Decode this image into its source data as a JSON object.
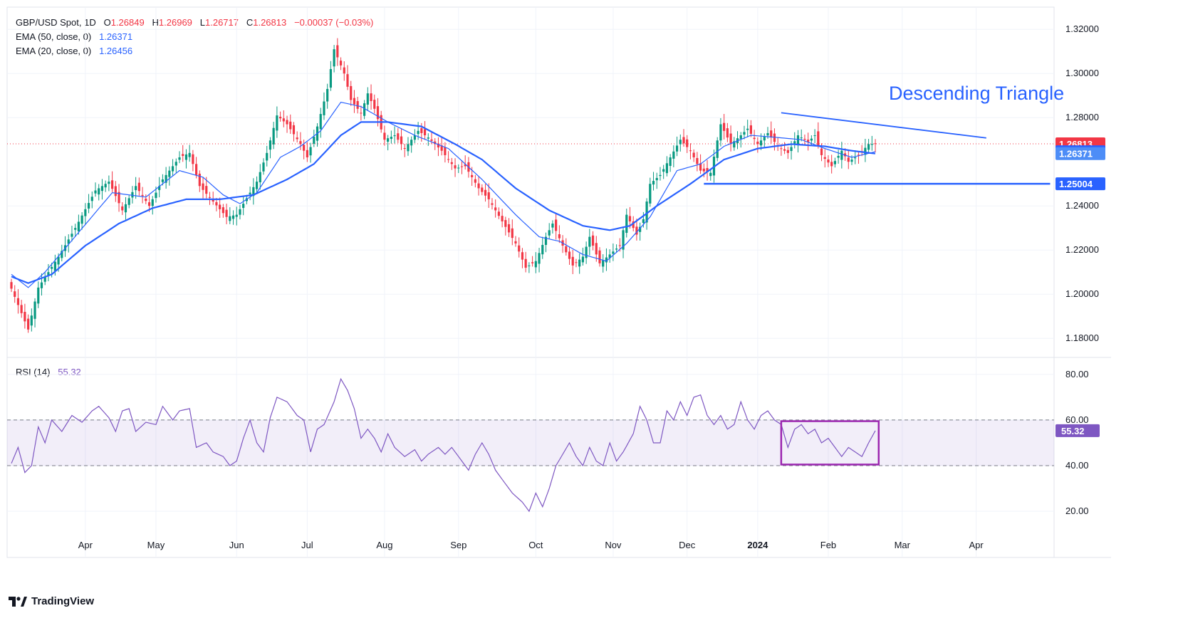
{
  "header": {
    "symbol": "GBP/USD Spot, 1D",
    "o_label": "O",
    "o_value": "1.26849",
    "h_label": "H",
    "h_value": "1.26969",
    "l_label": "L",
    "l_value": "1.26717",
    "c_label": "C",
    "c_value": "1.26813",
    "change": "−0.00037 (−0.03%)"
  },
  "ema50": {
    "label": "EMA (50, close, 0)",
    "value": "1.26371",
    "color": "#2962ff"
  },
  "ema20": {
    "label": "EMA (20, close, 0)",
    "value": "1.26456",
    "color": "#2962ff"
  },
  "rsi": {
    "label": "RSI (14)",
    "value": "55.32",
    "color": "#7e57c2"
  },
  "annotation": {
    "text": "Descending Triangle"
  },
  "brand": "TradingView",
  "colors": {
    "up": "#089981",
    "down": "#f23645",
    "ema": "#2962ff",
    "rsi": "#7e57c2",
    "box": "#9c27b0"
  },
  "chart_data": [
    {
      "type": "candlestick",
      "title": "GBP/USD Spot, 1D",
      "x_ticks": [
        "Apr",
        "May",
        "Jun",
        "Jul",
        "Aug",
        "Sep",
        "Oct",
        "Nov",
        "Dec",
        "2024",
        "Feb",
        "Mar",
        "Apr"
      ],
      "y_ticks": [
        "1.32000",
        "1.30000",
        "1.28000",
        "1.24000",
        "1.22000",
        "1.20000",
        "1.18000"
      ],
      "ylim": [
        1.172,
        1.3275
      ],
      "price_labels": [
        {
          "text": "1.26813",
          "value": 1.26813,
          "color": "#f23645"
        },
        {
          "text": "1.26456",
          "value": 1.26456,
          "color": "#2962ff"
        },
        {
          "text": "1.26371",
          "value": 1.26371,
          "color": "#4d8df7"
        },
        {
          "text": "1.25004",
          "value": 1.25004,
          "color": "#2962ff"
        }
      ],
      "last_close": 1.26813,
      "close_anchors": [
        [
          0,
          1.2025
        ],
        [
          5,
          1.184
        ],
        [
          8,
          1.203
        ],
        [
          14,
          1.217
        ],
        [
          19,
          1.23
        ],
        [
          25,
          1.247
        ],
        [
          29,
          1.251
        ],
        [
          33,
          1.238
        ],
        [
          37,
          1.249
        ],
        [
          41,
          1.24
        ],
        [
          45,
          1.252
        ],
        [
          50,
          1.262
        ],
        [
          53,
          1.264
        ],
        [
          56,
          1.249
        ],
        [
          60,
          1.242
        ],
        [
          64,
          1.235
        ],
        [
          67,
          1.236
        ],
        [
          71,
          1.246
        ],
        [
          73,
          1.251
        ],
        [
          76,
          1.264
        ],
        [
          79,
          1.281
        ],
        [
          82,
          1.277
        ],
        [
          86,
          1.268
        ],
        [
          88,
          1.262
        ],
        [
          91,
          1.276
        ],
        [
          94,
          1.293
        ],
        [
          96,
          1.311
        ],
        [
          99,
          1.3
        ],
        [
          101,
          1.288
        ],
        [
          104,
          1.282
        ],
        [
          106,
          1.291
        ],
        [
          108,
          1.284
        ],
        [
          111,
          1.27
        ],
        [
          114,
          1.272
        ],
        [
          117,
          1.266
        ],
        [
          121,
          1.274
        ],
        [
          124,
          1.271
        ],
        [
          128,
          1.265
        ],
        [
          132,
          1.257
        ],
        [
          135,
          1.258
        ],
        [
          139,
          1.248
        ],
        [
          142,
          1.243
        ],
        [
          146,
          1.233
        ],
        [
          150,
          1.223
        ],
        [
          153,
          1.212
        ],
        [
          156,
          1.215
        ],
        [
          159,
          1.226
        ],
        [
          161,
          1.232
        ],
        [
          164,
          1.222
        ],
        [
          167,
          1.213
        ],
        [
          170,
          1.217
        ],
        [
          172,
          1.226
        ],
        [
          175,
          1.214
        ],
        [
          178,
          1.218
        ],
        [
          181,
          1.222
        ],
        [
          183,
          1.236
        ],
        [
          186,
          1.227
        ],
        [
          188,
          1.234
        ],
        [
          190,
          1.25
        ],
        [
          193,
          1.254
        ],
        [
          196,
          1.262
        ],
        [
          199,
          1.27
        ],
        [
          202,
          1.265
        ],
        [
          205,
          1.256
        ],
        [
          208,
          1.255
        ],
        [
          211,
          1.277
        ],
        [
          214,
          1.268
        ],
        [
          217,
          1.272
        ],
        [
          219,
          1.275
        ],
        [
          222,
          1.268
        ],
        [
          225,
          1.273
        ],
        [
          228,
          1.267
        ],
        [
          231,
          1.264
        ],
        [
          234,
          1.272
        ],
        [
          237,
          1.269
        ],
        [
          239,
          1.272
        ],
        [
          241,
          1.263
        ],
        [
          244,
          1.258
        ],
        [
          247,
          1.265
        ],
        [
          249,
          1.26
        ],
        [
          252,
          1.263
        ],
        [
          255,
          1.268
        ],
        [
          257,
          1.26813
        ]
      ],
      "ema20_anchors": [
        [
          0,
          1.209
        ],
        [
          5,
          1.203
        ],
        [
          10,
          1.21
        ],
        [
          20,
          1.228
        ],
        [
          30,
          1.246
        ],
        [
          40,
          1.244
        ],
        [
          50,
          1.256
        ],
        [
          57,
          1.253
        ],
        [
          63,
          1.245
        ],
        [
          68,
          1.241
        ],
        [
          73,
          1.246
        ],
        [
          80,
          1.262
        ],
        [
          86,
          1.267
        ],
        [
          92,
          1.274
        ],
        [
          98,
          1.287
        ],
        [
          104,
          1.285
        ],
        [
          112,
          1.278
        ],
        [
          120,
          1.272
        ],
        [
          130,
          1.266
        ],
        [
          140,
          1.252
        ],
        [
          150,
          1.236
        ],
        [
          157,
          1.226
        ],
        [
          163,
          1.224
        ],
        [
          170,
          1.218
        ],
        [
          177,
          1.215
        ],
        [
          183,
          1.223
        ],
        [
          190,
          1.235
        ],
        [
          198,
          1.256
        ],
        [
          205,
          1.259
        ],
        [
          212,
          1.267
        ],
        [
          220,
          1.272
        ],
        [
          228,
          1.271
        ],
        [
          235,
          1.27
        ],
        [
          242,
          1.266
        ],
        [
          250,
          1.262
        ],
        [
          257,
          1.26456
        ]
      ],
      "ema50_anchors": [
        [
          0,
          1.208
        ],
        [
          5,
          1.205
        ],
        [
          12,
          1.209
        ],
        [
          22,
          1.222
        ],
        [
          32,
          1.232
        ],
        [
          42,
          1.239
        ],
        [
          52,
          1.243
        ],
        [
          62,
          1.243
        ],
        [
          72,
          1.245
        ],
        [
          82,
          1.252
        ],
        [
          90,
          1.259
        ],
        [
          98,
          1.272
        ],
        [
          104,
          1.278
        ],
        [
          112,
          1.278
        ],
        [
          122,
          1.276
        ],
        [
          132,
          1.268
        ],
        [
          140,
          1.261
        ],
        [
          150,
          1.248
        ],
        [
          160,
          1.238
        ],
        [
          170,
          1.231
        ],
        [
          178,
          1.229
        ],
        [
          184,
          1.231
        ],
        [
          192,
          1.24
        ],
        [
          202,
          1.25
        ],
        [
          212,
          1.261
        ],
        [
          222,
          1.266
        ],
        [
          232,
          1.268
        ],
        [
          242,
          1.267
        ],
        [
          250,
          1.265
        ],
        [
          257,
          1.26371
        ]
      ],
      "trendlines": [
        {
          "from": [
            229,
            1.2822
          ],
          "to": [
            290,
            1.2708
          ],
          "name": "descending-resistance"
        },
        {
          "from": [
            206,
            1.25004
          ],
          "to": [
            309,
            1.25004
          ],
          "name": "horizontal-support"
        }
      ]
    },
    {
      "type": "line",
      "title": "RSI (14)",
      "y_ticks": [
        "80.00",
        "60.00",
        "40.00",
        "20.00"
      ],
      "ylim": [
        8.5,
        86.5
      ],
      "band": [
        40,
        60
      ],
      "last_value": 55.32,
      "anchors": [
        [
          0,
          41
        ],
        [
          2,
          48
        ],
        [
          4,
          37
        ],
        [
          6,
          40
        ],
        [
          8,
          57
        ],
        [
          10,
          50
        ],
        [
          12,
          60
        ],
        [
          15,
          55
        ],
        [
          18,
          62
        ],
        [
          21,
          59
        ],
        [
          24,
          64
        ],
        [
          26,
          66
        ],
        [
          29,
          61
        ],
        [
          31,
          55
        ],
        [
          33,
          64
        ],
        [
          35,
          65
        ],
        [
          37,
          55
        ],
        [
          40,
          59
        ],
        [
          43,
          58
        ],
        [
          45,
          66
        ],
        [
          48,
          60
        ],
        [
          50,
          64
        ],
        [
          53,
          65
        ],
        [
          55,
          48
        ],
        [
          58,
          50
        ],
        [
          60,
          46
        ],
        [
          63,
          44
        ],
        [
          65,
          40
        ],
        [
          67,
          42
        ],
        [
          69,
          52
        ],
        [
          71,
          60
        ],
        [
          73,
          50
        ],
        [
          75,
          46
        ],
        [
          77,
          61
        ],
        [
          79,
          70
        ],
        [
          82,
          68
        ],
        [
          85,
          62
        ],
        [
          87,
          60
        ],
        [
          89,
          46
        ],
        [
          91,
          56
        ],
        [
          93,
          58
        ],
        [
          96,
          68
        ],
        [
          98,
          78
        ],
        [
          100,
          73
        ],
        [
          102,
          65
        ],
        [
          104,
          52
        ],
        [
          106,
          56
        ],
        [
          108,
          52
        ],
        [
          110,
          46
        ],
        [
          112,
          54
        ],
        [
          114,
          48
        ],
        [
          117,
          44
        ],
        [
          120,
          47
        ],
        [
          122,
          42
        ],
        [
          124,
          45
        ],
        [
          127,
          48
        ],
        [
          129,
          45
        ],
        [
          131,
          48
        ],
        [
          134,
          42
        ],
        [
          136,
          38
        ],
        [
          138,
          45
        ],
        [
          140,
          50
        ],
        [
          142,
          45
        ],
        [
          144,
          38
        ],
        [
          146,
          34
        ],
        [
          149,
          28
        ],
        [
          152,
          24
        ],
        [
          154,
          20
        ],
        [
          156,
          28
        ],
        [
          158,
          22
        ],
        [
          160,
          30
        ],
        [
          162,
          40
        ],
        [
          164,
          45
        ],
        [
          166,
          50
        ],
        [
          168,
          44
        ],
        [
          170,
          40
        ],
        [
          172,
          48
        ],
        [
          174,
          42
        ],
        [
          176,
          40
        ],
        [
          178,
          50
        ],
        [
          180,
          42
        ],
        [
          182,
          46
        ],
        [
          185,
          54
        ],
        [
          187,
          66
        ],
        [
          189,
          60
        ],
        [
          191,
          50
        ],
        [
          193,
          50
        ],
        [
          195,
          64
        ],
        [
          197,
          60
        ],
        [
          199,
          68
        ],
        [
          201,
          62
        ],
        [
          203,
          70
        ],
        [
          205,
          71
        ],
        [
          207,
          62
        ],
        [
          209,
          58
        ],
        [
          211,
          62
        ],
        [
          213,
          56
        ],
        [
          215,
          58
        ],
        [
          217,
          68
        ],
        [
          219,
          60
        ],
        [
          221,
          56
        ],
        [
          223,
          62
        ],
        [
          225,
          64
        ],
        [
          227,
          60
        ],
        [
          229,
          58
        ],
        [
          231,
          48
        ],
        [
          233,
          56
        ],
        [
          235,
          58
        ],
        [
          237,
          54
        ],
        [
          239,
          56
        ],
        [
          241,
          50
        ],
        [
          243,
          52
        ],
        [
          245,
          48
        ],
        [
          247,
          44
        ],
        [
          249,
          48
        ],
        [
          251,
          46
        ],
        [
          253,
          44
        ],
        [
          255,
          50
        ],
        [
          257,
          55.32
        ]
      ],
      "box": {
        "x": [
          229,
          258
        ],
        "y": [
          40.5,
          59.5
        ]
      }
    }
  ]
}
